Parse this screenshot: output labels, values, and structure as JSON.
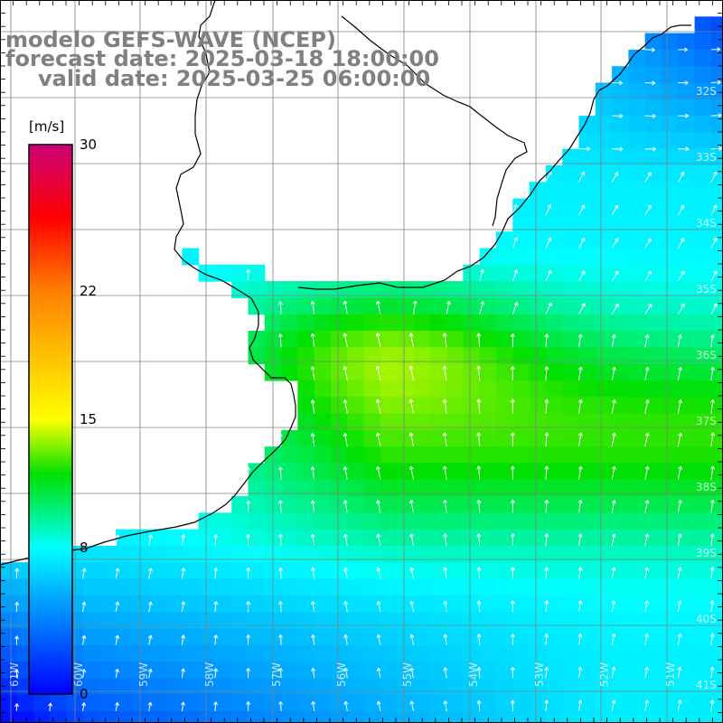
{
  "map": {
    "title": "modelo GEFS-WAVE (NCEP)",
    "forecast_date": "forecast date: 2025-03-18 18:00:00",
    "valid_date": "valid date: 2025-03-25 06:00:00",
    "lon_labels": [
      "61W",
      "60W",
      "59W",
      "58W",
      "57W",
      "56W",
      "55W",
      "54W",
      "53W",
      "52W",
      "51W"
    ],
    "lat_labels": [
      "32S",
      "33S",
      "34S",
      "35S",
      "36S",
      "37S",
      "38S",
      "39S",
      "40S",
      "41S"
    ],
    "colors": {
      "land": "#ffffff",
      "coast": "#000000",
      "grid": "#808080",
      "arrow": "#ffffff"
    }
  },
  "colorbar": {
    "unit": "[m/s]",
    "ticks": [
      "30",
      "22",
      "15",
      "8",
      "0"
    ],
    "range": [
      0,
      30
    ],
    "stops": [
      {
        "value": 0,
        "color": "#0000ff"
      },
      {
        "value": 8,
        "color": "#00ffff"
      },
      {
        "value": 12,
        "color": "#00e000"
      },
      {
        "value": 15,
        "color": "#ffff00"
      },
      {
        "value": 22,
        "color": "#ff8000"
      },
      {
        "value": 26,
        "color": "#ff0000"
      },
      {
        "value": 30,
        "color": "#cc0077"
      }
    ]
  }
}
